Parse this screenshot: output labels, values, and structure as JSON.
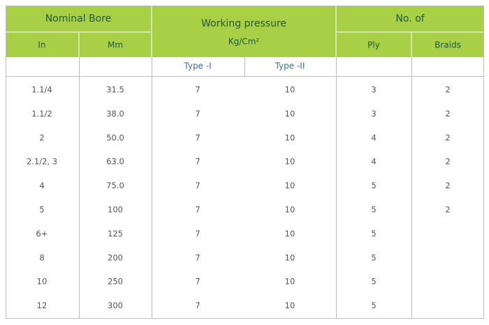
{
  "table": {
    "header": {
      "nominal_bore": "Nominal Bore",
      "working_pressure": "Working pressure",
      "pressure_unit": "Kg/Cm²",
      "no_of": "No. of",
      "in": "In",
      "mm": "Mm",
      "ply": "Ply",
      "braids": "Braids",
      "type_1": "Type -I",
      "type_2": "Type -II"
    },
    "rows": [
      [
        "1.1/4",
        "31.5",
        "7",
        "10",
        "3",
        "2"
      ],
      [
        "1.1/2",
        "38.0",
        "7",
        "10",
        "3",
        "2"
      ],
      [
        "2",
        "50.0",
        "7",
        "10",
        "4",
        "2"
      ],
      [
        "2.1/2, 3",
        "63.0",
        "7",
        "10",
        "4",
        "2"
      ],
      [
        "4",
        "75.0",
        "7",
        "10",
        "5",
        "2"
      ],
      [
        "5",
        "100",
        "7",
        "10",
        "5",
        "2"
      ],
      [
        "6+",
        "125",
        "7",
        "10",
        "5",
        null
      ],
      [
        "8",
        "200",
        "7",
        "10",
        "5",
        null
      ],
      [
        "10",
        "250",
        "7",
        "10",
        "5",
        null
      ],
      [
        "12",
        "300",
        "7",
        "10",
        "5",
        null
      ]
    ]
  }
}
